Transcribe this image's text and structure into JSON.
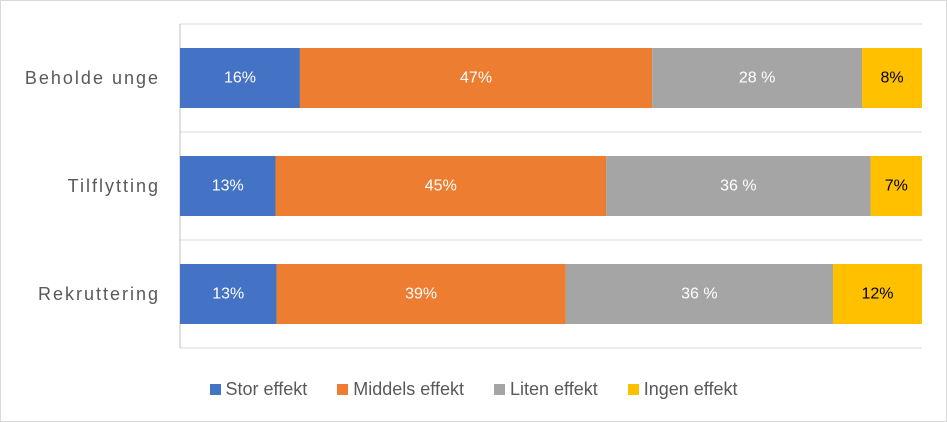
{
  "chart_data": {
    "type": "bar",
    "orientation": "horizontal",
    "stacked": "percent",
    "title": "",
    "xlabel": "",
    "ylabel": "",
    "xlim": [
      0,
      100
    ],
    "categories": [
      "Beholde unge",
      "Tilflytting",
      "Rekruttering"
    ],
    "series": [
      {
        "name": "Stor effekt",
        "color": "#4472c4",
        "values": [
          16,
          13,
          13
        ],
        "labels": [
          "16%",
          "13%",
          "13%"
        ],
        "label_color": "#ffffff"
      },
      {
        "name": "Middels effekt",
        "color": "#ed7d31",
        "values": [
          47,
          45,
          39
        ],
        "labels": [
          "47%",
          "45%",
          "39%"
        ],
        "label_color": "#ffffff"
      },
      {
        "name": "Liten effekt",
        "color": "#a5a5a5",
        "values": [
          28,
          36,
          36
        ],
        "labels": [
          "28 %",
          "36 %",
          "36 %"
        ],
        "label_color": "#ffffff"
      },
      {
        "name": "Ingen effekt",
        "color": "#ffc000",
        "values": [
          8,
          7,
          12
        ],
        "labels": [
          "8%",
          "7%",
          "12%"
        ],
        "label_color": "#000000"
      }
    ],
    "gridlines": true,
    "legend_position": "bottom"
  }
}
